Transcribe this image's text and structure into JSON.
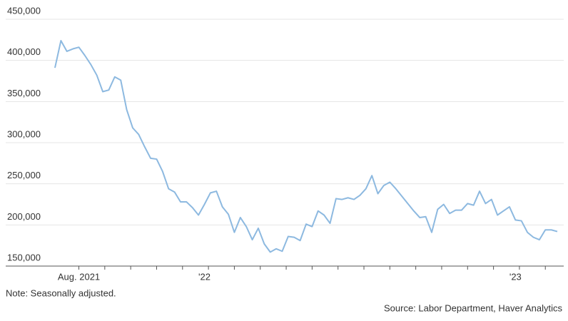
{
  "chart_data": {
    "type": "line",
    "note": "Note: Seasonally adjusted.",
    "source": "Source: Labor Department, Haver Analytics",
    "color": "#8db9e0",
    "grid": true,
    "ylim": [
      150000,
      450000
    ],
    "yticks": [
      {
        "value": 150000,
        "label": "150,000"
      },
      {
        "value": 200000,
        "label": "200,000"
      },
      {
        "value": 250000,
        "label": "250,000"
      },
      {
        "value": 300000,
        "label": "300,000"
      },
      {
        "value": 350000,
        "label": "350,000"
      },
      {
        "value": 400000,
        "label": "400,000"
      },
      {
        "value": 450000,
        "label": "450,000"
      }
    ],
    "categories": [
      null,
      null,
      null,
      null,
      "Aug. 2021",
      null,
      null,
      null,
      null,
      null,
      null,
      null,
      null,
      null,
      null,
      null,
      null,
      null,
      null,
      null,
      null,
      null,
      null,
      null,
      null,
      "'22",
      null,
      null,
      null,
      null,
      null,
      null,
      null,
      null,
      null,
      null,
      null,
      null,
      null,
      null,
      null,
      null,
      null,
      null,
      null,
      null,
      null,
      null,
      null,
      null,
      null,
      null,
      null,
      null,
      null,
      null,
      null,
      null,
      null,
      null,
      null,
      null,
      null,
      null,
      null,
      null,
      null,
      null,
      null,
      null,
      null,
      null,
      null,
      null,
      null,
      null,
      null,
      "'23",
      null,
      null,
      null,
      null,
      null,
      null,
      null
    ],
    "values": [
      391000,
      424000,
      411000,
      414000,
      416000,
      406000,
      395000,
      382000,
      362000,
      364000,
      380000,
      376000,
      340000,
      318000,
      310000,
      295000,
      281000,
      280000,
      265000,
      244000,
      240000,
      228000,
      228000,
      221000,
      212000,
      225000,
      239000,
      241000,
      222000,
      213000,
      191000,
      209000,
      198000,
      182000,
      196000,
      177000,
      167000,
      171000,
      168000,
      186000,
      185000,
      181000,
      201000,
      198000,
      217000,
      212000,
      202000,
      232000,
      231000,
      233000,
      231000,
      236000,
      244000,
      260000,
      238000,
      248000,
      252000,
      244000,
      235000,
      226000,
      217000,
      209000,
      210000,
      191000,
      219000,
      225000,
      214000,
      218000,
      218000,
      226000,
      224000,
      241000,
      226000,
      231000,
      212000,
      217000,
      222000,
      206000,
      205000,
      191000,
      185000,
      182000,
      194000,
      194000,
      192000
    ]
  }
}
